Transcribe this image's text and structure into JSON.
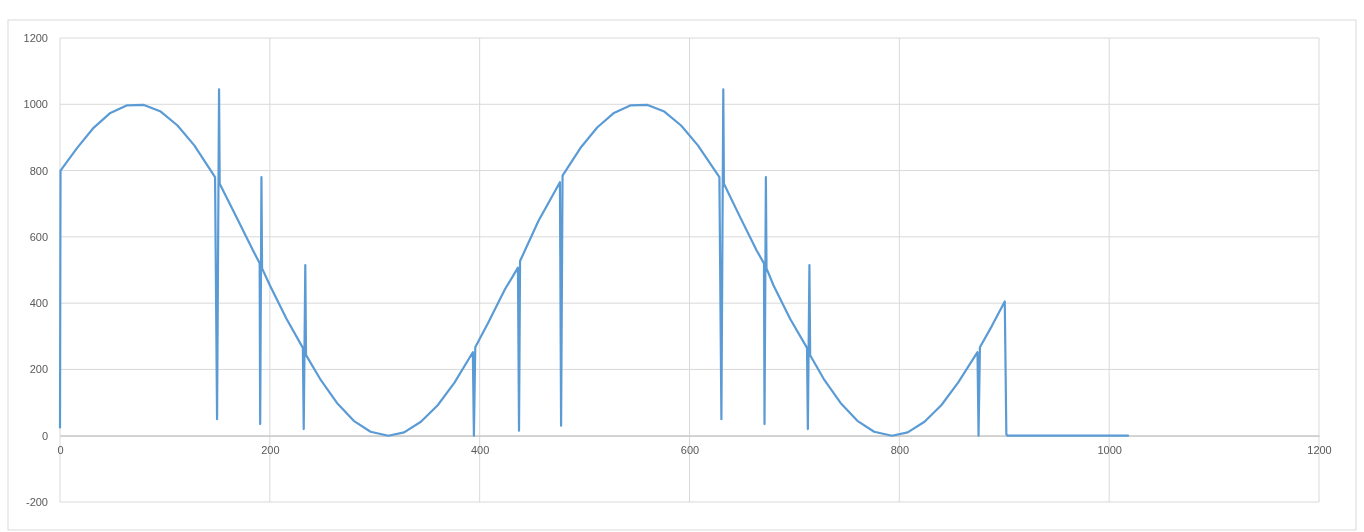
{
  "chart_data": {
    "type": "line",
    "xlim": [
      0,
      1200
    ],
    "xticks": [
      0,
      200,
      400,
      600,
      800,
      1000,
      1200
    ],
    "ylim": [
      -200,
      1200
    ],
    "yticks": [
      -200,
      0,
      200,
      400,
      600,
      800,
      1000,
      1200
    ],
    "grid": true,
    "marker": "none",
    "series": [
      {
        "color": "#5b9bd5",
        "x": [
          0,
          0.5,
          16,
          32,
          48,
          64,
          80,
          96,
          112,
          128,
          147.8,
          149.7,
          151.6,
          152.2,
          168,
          184,
          190.3,
          190.8,
          192,
          192.6,
          200,
          216,
          231.5,
          232.3,
          233.8,
          234.5,
          248,
          264,
          280,
          296,
          313,
          328,
          344,
          360,
          376,
          393.5,
          394.5,
          395.8,
          408,
          424,
          436.5,
          437.5,
          438.5,
          456,
          476.5,
          477.6,
          479,
          496,
          512,
          528,
          544,
          560,
          576,
          592,
          608,
          628.5,
          630.4,
          632.2,
          632.8,
          648,
          664,
          671,
          671.5,
          672.8,
          673.4,
          680,
          696,
          712,
          712.8,
          714.3,
          715,
          728,
          744,
          760,
          776,
          793,
          808,
          824,
          840,
          856,
          874.5,
          875.5,
          876.8,
          888,
          900.5,
          902,
          903,
          1018
        ],
        "values": [
          25,
          800,
          867,
          929,
          974,
          997,
          998,
          978,
          936,
          876,
          780,
          50,
          1045,
          760,
          661,
          559,
          520,
          35,
          780,
          505,
          454,
          352,
          265,
          20,
          515,
          243,
          171,
          99,
          45,
          12,
          0,
          10,
          42,
          92,
          160,
          252,
          0,
          267,
          340,
          441,
          507,
          15,
          527,
          648,
          765,
          30,
          785,
          868,
          930,
          974,
          997,
          998,
          978,
          936,
          876,
          780,
          50,
          1045,
          760,
          661,
          559,
          520,
          35,
          780,
          505,
          454,
          352,
          265,
          20,
          515,
          243,
          171,
          99,
          45,
          12,
          0,
          10,
          42,
          92,
          160,
          252,
          0,
          267,
          330,
          405,
          5,
          0,
          0
        ]
      }
    ]
  }
}
